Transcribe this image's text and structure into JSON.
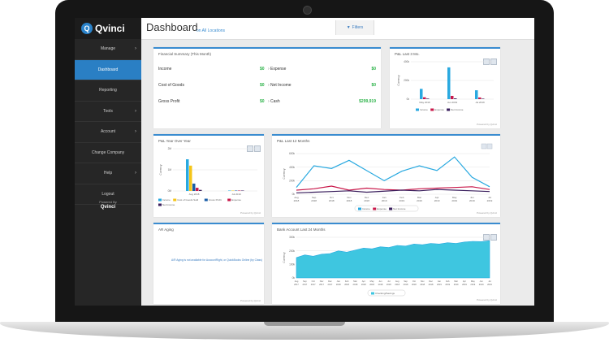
{
  "sidebar": {
    "logo": "Qvinci",
    "items": [
      {
        "label": "Manage",
        "chevron": true,
        "active": false
      },
      {
        "label": "Dashboard",
        "chevron": false,
        "active": true
      },
      {
        "label": "Reporting",
        "chevron": false,
        "active": false
      },
      {
        "label": "Tools",
        "chevron": true,
        "active": false
      },
      {
        "label": "Account",
        "chevron": true,
        "active": false
      },
      {
        "label": "Change Company",
        "chevron": false,
        "active": false
      },
      {
        "label": "Help",
        "chevron": true,
        "active": false
      },
      {
        "label": "Logout",
        "chevron": false,
        "active": false
      }
    ],
    "powered_by": "Powered By",
    "powered_logo": "Qvinci"
  },
  "header": {
    "title": "Dashboard",
    "subtitle": "on All Locations",
    "filters_label": "Filters"
  },
  "financial_summary": {
    "title": "Financial Summary (This Month)",
    "left": [
      {
        "label": "Income",
        "value": "$0"
      },
      {
        "label": "Cost of Goods",
        "value": "$0"
      },
      {
        "label": "Gross Profit",
        "value": "$0"
      }
    ],
    "right": [
      {
        "label": "Expense",
        "value": "$0"
      },
      {
        "label": "Net Income",
        "value": "$0"
      },
      {
        "label": "Cash",
        "value": "$299,919"
      }
    ]
  },
  "ar_aging": {
    "title": "AR Aging",
    "message": "A/R Aging is not available for AccountRight, or QuickBooks Online (by Class)"
  },
  "footnote": "Powered by Qvinci",
  "colors": {
    "accent": "#3a8cd0",
    "income": "#29a9e0",
    "cogs": "#f5c518",
    "gross_profit": "#1a5ea8",
    "expense": "#c9184a",
    "net_income": "#3a1f5d",
    "positive": "#2db34a"
  },
  "charts": [
    {
      "id": "pl-last3",
      "chart_data": {
        "type": "bar",
        "title": "P&L Last 3 Mo.",
        "ylabel": "Currency",
        "yticks": [
          "400k",
          "200k",
          "0k"
        ],
        "ylim": [
          0,
          400
        ],
        "categories": [
          "May 2019",
          "Jun 2019",
          "Jul 2019"
        ],
        "series": [
          {
            "name": "Income",
            "color": "#29a9e0",
            "values": [
              110,
              340,
              95
            ]
          },
          {
            "name": "Expense",
            "color": "#c9184a",
            "values": [
              20,
              35,
              18
            ]
          },
          {
            "name": "Net Income",
            "color": "#3a1f5d",
            "values": [
              6,
              8,
              5
            ]
          }
        ]
      }
    },
    {
      "id": "pl-yoy",
      "chart_data": {
        "type": "bar",
        "title": "P&L Year Over Year",
        "ylabel": "Currency",
        "yticks": [
          "2M",
          "1M",
          "0M"
        ],
        "ylim": [
          0,
          2
        ],
        "categories": [
          "Aug 2018",
          "Jul 2019"
        ],
        "series": [
          {
            "name": "Income",
            "color": "#29a9e0",
            "values": [
              1.5,
              0.02
            ]
          },
          {
            "name": "Cost of Goods Sold",
            "color": "#f5c518",
            "values": [
              1.2,
              0.01
            ]
          },
          {
            "name": "Gross Profit",
            "color": "#1a5ea8",
            "values": [
              0.35,
              0.01
            ]
          },
          {
            "name": "Expense",
            "color": "#c9184a",
            "values": [
              0.15,
              0.01
            ]
          },
          {
            "name": "Net Income",
            "color": "#3a1f5d",
            "values": [
              0.05,
              0.0
            ]
          }
        ]
      }
    },
    {
      "id": "pl-last12",
      "chart_data": {
        "type": "line",
        "title": "P&L Last 12 Months",
        "ylabel": "Currency",
        "yticks": [
          "600k",
          "400k",
          "200k",
          "0k"
        ],
        "ylim": [
          0,
          600
        ],
        "categories": [
          "Aug 2018",
          "Sep 2018",
          "Oct 2018",
          "Nov 2018",
          "Dec 2018",
          "Jan 2019",
          "Feb 2019",
          "Mar 2019",
          "Apr 2019",
          "May 2019",
          "Jun 2019",
          "Jul 2019"
        ],
        "series": [
          {
            "name": "Income",
            "color": "#29a9e0",
            "values": [
              100,
              420,
              380,
              500,
              350,
              200,
              340,
              420,
              350,
              550,
              250,
              110
            ]
          },
          {
            "name": "Expense",
            "color": "#c9184a",
            "values": [
              60,
              80,
              120,
              60,
              90,
              70,
              60,
              80,
              90,
              100,
              110,
              70
            ]
          },
          {
            "name": "Net Income",
            "color": "#3a1f5d",
            "values": [
              20,
              30,
              40,
              50,
              30,
              45,
              60,
              50,
              70,
              60,
              50,
              40
            ]
          }
        ]
      }
    },
    {
      "id": "bank-last24",
      "chart_data": {
        "type": "area",
        "title": "Bank Account Last 24 Months",
        "ylabel": "Currency",
        "yticks": [
          "300k",
          "200k",
          "100k",
          "0k"
        ],
        "ylim": [
          0,
          300
        ],
        "categories": [
          "Aug 2017",
          "Sep 2017",
          "Oct 2017",
          "Nov 2017",
          "Dec 2017",
          "Jan 2018",
          "Feb 2018",
          "Mar 2018",
          "Apr 2018",
          "May 2018",
          "Jun 2018",
          "Jul 2018",
          "Aug 2018",
          "Sep 2018",
          "Oct 2018",
          "Nov 2018",
          "Dec 2018",
          "Jan 2019",
          "Feb 2019",
          "Mar 2019",
          "Apr 2019",
          "May 2019",
          "Jun 2019",
          "Jul 2019"
        ],
        "series": [
          {
            "name": "Checking/Savings",
            "color": "#3ec6e0",
            "values": [
              150,
              170,
              160,
              175,
              180,
              200,
              190,
              205,
              220,
              215,
              230,
              225,
              240,
              235,
              250,
              245,
              255,
              250,
              260,
              255,
              265,
              270,
              268,
              275
            ]
          }
        ]
      }
    }
  ]
}
